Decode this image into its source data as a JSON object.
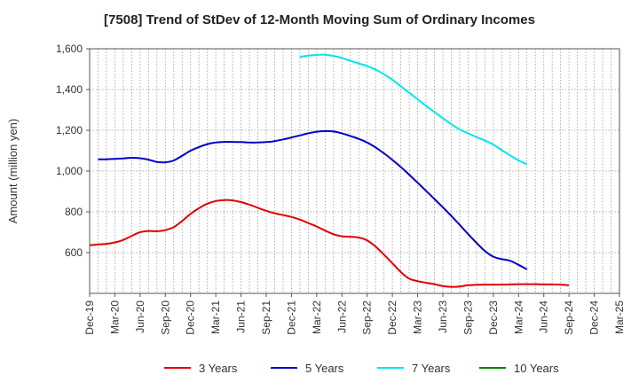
{
  "chart_data": {
    "type": "line",
    "title": "[7508]  Trend of StDev of 12-Month Moving Sum of Ordinary Incomes",
    "ylabel": "Amount (million yen)",
    "xlabel": "",
    "ylim": [
      400,
      1600
    ],
    "yticks": [
      600,
      800,
      1000,
      1200,
      1400,
      1600
    ],
    "ytick_labels": [
      "600",
      "800",
      "1,000",
      "1,200",
      "1,400",
      "1,600"
    ],
    "x_range": [
      0,
      63
    ],
    "x_ticks": [
      {
        "i": 0,
        "label": "Dec-19"
      },
      {
        "i": 3,
        "label": "Mar-20"
      },
      {
        "i": 6,
        "label": "Jun-20"
      },
      {
        "i": 9,
        "label": "Sep-20"
      },
      {
        "i": 12,
        "label": "Dec-20"
      },
      {
        "i": 15,
        "label": "Mar-21"
      },
      {
        "i": 18,
        "label": "Jun-21"
      },
      {
        "i": 21,
        "label": "Sep-21"
      },
      {
        "i": 24,
        "label": "Dec-21"
      },
      {
        "i": 27,
        "label": "Mar-22"
      },
      {
        "i": 30,
        "label": "Jun-22"
      },
      {
        "i": 33,
        "label": "Sep-22"
      },
      {
        "i": 36,
        "label": "Dec-22"
      },
      {
        "i": 39,
        "label": "Mar-23"
      },
      {
        "i": 42,
        "label": "Jun-23"
      },
      {
        "i": 45,
        "label": "Sep-23"
      },
      {
        "i": 48,
        "label": "Dec-23"
      },
      {
        "i": 51,
        "label": "Mar-24"
      },
      {
        "i": 54,
        "label": "Jun-24"
      },
      {
        "i": 57,
        "label": "Sep-24"
      },
      {
        "i": 60,
        "label": "Dec-24"
      },
      {
        "i": 63,
        "label": "Mar-25"
      }
    ],
    "grid": true,
    "legend_position": "bottom",
    "series": [
      {
        "name": "3 Years",
        "color": "#e00000",
        "points": [
          [
            0,
            636
          ],
          [
            1,
            640
          ],
          [
            2,
            643
          ],
          [
            3,
            650
          ],
          [
            4,
            662
          ],
          [
            5,
            682
          ],
          [
            6,
            700
          ],
          [
            7,
            706
          ],
          [
            8,
            705
          ],
          [
            9,
            710
          ],
          [
            10,
            725
          ],
          [
            11,
            755
          ],
          [
            12,
            790
          ],
          [
            13,
            818
          ],
          [
            14,
            840
          ],
          [
            15,
            853
          ],
          [
            16,
            858
          ],
          [
            17,
            856
          ],
          [
            18,
            848
          ],
          [
            19,
            835
          ],
          [
            20,
            820
          ],
          [
            21,
            805
          ],
          [
            22,
            793
          ],
          [
            23,
            784
          ],
          [
            24,
            775
          ],
          [
            25,
            762
          ],
          [
            26,
            745
          ],
          [
            27,
            728
          ],
          [
            28,
            708
          ],
          [
            29,
            690
          ],
          [
            30,
            680
          ],
          [
            31,
            678
          ],
          [
            32,
            674
          ],
          [
            33,
            660
          ],
          [
            34,
            630
          ],
          [
            35,
            590
          ],
          [
            36,
            548
          ],
          [
            37,
            505
          ],
          [
            38,
            472
          ],
          [
            39,
            460
          ],
          [
            40,
            452
          ],
          [
            41,
            445
          ],
          [
            42,
            436
          ],
          [
            43,
            432
          ],
          [
            44,
            434
          ],
          [
            45,
            440
          ],
          [
            46,
            442
          ],
          [
            47,
            443
          ],
          [
            48,
            443
          ],
          [
            49,
            443
          ],
          [
            50,
            444
          ],
          [
            51,
            445
          ],
          [
            52,
            445
          ],
          [
            53,
            445
          ],
          [
            54,
            444
          ],
          [
            55,
            444
          ],
          [
            56,
            443
          ],
          [
            57,
            440
          ]
        ]
      },
      {
        "name": "5 Years",
        "color": "#0000cc",
        "points": [
          [
            1,
            1058
          ],
          [
            2,
            1058
          ],
          [
            3,
            1060
          ],
          [
            4,
            1062
          ],
          [
            5,
            1065
          ],
          [
            6,
            1063
          ],
          [
            7,
            1056
          ],
          [
            8,
            1045
          ],
          [
            9,
            1043
          ],
          [
            10,
            1052
          ],
          [
            11,
            1075
          ],
          [
            12,
            1100
          ],
          [
            13,
            1118
          ],
          [
            14,
            1132
          ],
          [
            15,
            1140
          ],
          [
            16,
            1143
          ],
          [
            17,
            1143
          ],
          [
            18,
            1142
          ],
          [
            19,
            1140
          ],
          [
            20,
            1140
          ],
          [
            21,
            1142
          ],
          [
            22,
            1147
          ],
          [
            23,
            1155
          ],
          [
            24,
            1165
          ],
          [
            25,
            1175
          ],
          [
            26,
            1185
          ],
          [
            27,
            1193
          ],
          [
            28,
            1196
          ],
          [
            29,
            1194
          ],
          [
            30,
            1185
          ],
          [
            31,
            1172
          ],
          [
            32,
            1158
          ],
          [
            33,
            1140
          ],
          [
            34,
            1116
          ],
          [
            35,
            1087
          ],
          [
            36,
            1055
          ],
          [
            37,
            1020
          ],
          [
            38,
            982
          ],
          [
            39,
            943
          ],
          [
            40,
            903
          ],
          [
            41,
            863
          ],
          [
            42,
            822
          ],
          [
            43,
            780
          ],
          [
            44,
            736
          ],
          [
            45,
            691
          ],
          [
            46,
            648
          ],
          [
            47,
            608
          ],
          [
            48,
            580
          ],
          [
            49,
            568
          ],
          [
            50,
            560
          ],
          [
            51,
            540
          ],
          [
            52,
            518
          ]
        ]
      },
      {
        "name": "7 Years",
        "color": "#00e5ee",
        "points": [
          [
            25,
            1560
          ],
          [
            26,
            1566
          ],
          [
            27,
            1570
          ],
          [
            28,
            1571
          ],
          [
            29,
            1565
          ],
          [
            30,
            1555
          ],
          [
            31,
            1541
          ],
          [
            32,
            1528
          ],
          [
            33,
            1515
          ],
          [
            34,
            1498
          ],
          [
            35,
            1475
          ],
          [
            36,
            1448
          ],
          [
            37,
            1416
          ],
          [
            38,
            1384
          ],
          [
            39,
            1352
          ],
          [
            40,
            1320
          ],
          [
            41,
            1290
          ],
          [
            42,
            1259
          ],
          [
            43,
            1230
          ],
          [
            44,
            1204
          ],
          [
            45,
            1185
          ],
          [
            46,
            1167
          ],
          [
            47,
            1150
          ],
          [
            48,
            1130
          ],
          [
            49,
            1103
          ],
          [
            50,
            1077
          ],
          [
            51,
            1052
          ],
          [
            52,
            1033
          ]
        ]
      },
      {
        "name": "10 Years",
        "color": "#008000",
        "points": []
      }
    ]
  }
}
